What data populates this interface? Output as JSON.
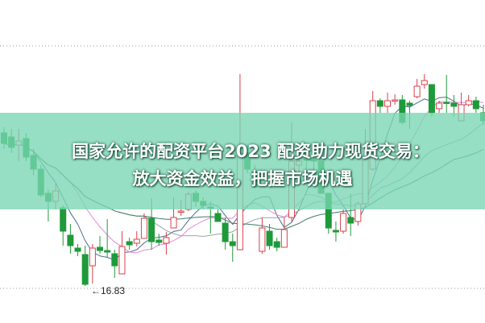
{
  "overlay": {
    "line1": "国家允许的配资平台2023 配资助力现货交易：",
    "line2": "放大资金效益，把握市场机遇"
  },
  "chart_data": {
    "type": "candlestick",
    "title": "",
    "xlabel": "",
    "ylabel": "",
    "ylim": [
      16.79,
      20.38
    ],
    "grid": "dotted horizontal lines at top and bottom",
    "colors": {
      "up": "#d9414b",
      "down": "#1e9a3a",
      "ma5": "#4a6f86",
      "ma10": "#e38ad6",
      "ma20": "#9aa5a8",
      "ma30": "#3f7a6a"
    },
    "annotation": {
      "text": "←16.83",
      "value": 16.83
    },
    "moving_averages": [
      "MA5",
      "MA10",
      "MA20",
      "MA30"
    ],
    "ohlc": [
      [
        18.73,
        18.8,
        18.53,
        18.6
      ],
      [
        18.68,
        18.78,
        18.48,
        18.55
      ],
      [
        18.58,
        18.78,
        18.38,
        18.63
      ],
      [
        18.66,
        18.73,
        18.38,
        18.43
      ],
      [
        18.45,
        18.53,
        18.2,
        18.28
      ],
      [
        18.28,
        18.33,
        17.93,
        17.96
      ],
      [
        17.98,
        18.03,
        17.63,
        17.88
      ],
      [
        17.88,
        18.1,
        17.78,
        18.01
      ],
      [
        17.8,
        17.83,
        17.33,
        17.51
      ],
      [
        17.46,
        17.6,
        17.23,
        17.33
      ],
      [
        17.3,
        17.35,
        17.2,
        17.26
      ],
      [
        17.22,
        17.33,
        16.83,
        16.85
      ],
      [
        17.08,
        17.35,
        16.86,
        17.3
      ],
      [
        17.31,
        17.45,
        17.23,
        17.27
      ],
      [
        17.27,
        17.66,
        17.18,
        17.25
      ],
      [
        17.23,
        17.28,
        16.93,
        17.08
      ],
      [
        16.98,
        17.51,
        16.98,
        17.32
      ],
      [
        17.38,
        17.43,
        17.28,
        17.34
      ],
      [
        17.36,
        17.51,
        17.32,
        17.41
      ],
      [
        17.42,
        17.73,
        17.42,
        17.67
      ],
      [
        17.67,
        17.92,
        17.28,
        17.38
      ],
      [
        17.4,
        17.48,
        17.33,
        17.37
      ],
      [
        17.36,
        17.5,
        17.22,
        17.43
      ],
      [
        17.55,
        17.93,
        17.55,
        17.68
      ],
      [
        17.75,
        17.9,
        17.7,
        17.76
      ],
      [
        17.78,
        18.0,
        17.76,
        17.97
      ],
      [
        17.98,
        18.02,
        17.81,
        17.88
      ],
      [
        17.88,
        17.93,
        17.78,
        17.83
      ],
      [
        17.81,
        17.88,
        17.48,
        17.8
      ],
      [
        17.73,
        17.78,
        17.63,
        17.63
      ],
      [
        17.61,
        17.68,
        17.28,
        17.38
      ],
      [
        17.38,
        17.48,
        17.13,
        17.33
      ],
      [
        17.28,
        19.46,
        17.28,
        18.46
      ],
      [
        18.48,
        18.58,
        18.23,
        18.28
      ],
      [
        18.25,
        18.33,
        18.05,
        18.06
      ],
      [
        17.26,
        17.68,
        17.23,
        17.55
      ],
      [
        17.51,
        17.6,
        17.28,
        17.33
      ],
      [
        17.38,
        17.43,
        17.26,
        17.31
      ],
      [
        17.31,
        17.68,
        17.31,
        17.53
      ],
      [
        17.68,
        18.86,
        17.63,
        18.38
      ],
      [
        18.33,
        18.53,
        18.23,
        18.38
      ],
      [
        18.41,
        18.48,
        18.28,
        18.39
      ],
      [
        18.41,
        18.48,
        18.23,
        18.38
      ],
      [
        18.38,
        18.48,
        17.98,
        17.98
      ],
      [
        17.98,
        17.98,
        17.48,
        17.55
      ],
      [
        17.52,
        17.63,
        17.38,
        17.5
      ],
      [
        17.51,
        17.78,
        17.48,
        17.73
      ],
      [
        17.68,
        17.98,
        17.45,
        17.61
      ],
      [
        17.63,
        17.88,
        17.58,
        17.85
      ],
      [
        17.85,
        18.78,
        17.85,
        18.41
      ],
      [
        18.28,
        19.25,
        18.26,
        19.13
      ],
      [
        19.13,
        19.16,
        18.98,
        19.06
      ],
      [
        19.06,
        19.23,
        18.98,
        19.13
      ],
      [
        19.13,
        19.21,
        19.08,
        19.14
      ],
      [
        19.14,
        19.2,
        18.83,
        18.86
      ],
      [
        19.1,
        19.13,
        18.78,
        19.07
      ],
      [
        19.18,
        19.4,
        19.16,
        19.31
      ],
      [
        19.33,
        19.46,
        19.28,
        19.38
      ],
      [
        19.33,
        19.33,
        18.93,
        18.98
      ],
      [
        19.03,
        19.13,
        18.98,
        19.1
      ],
      [
        19.11,
        19.45,
        18.98,
        19.1
      ],
      [
        19.1,
        19.2,
        18.93,
        19.06
      ],
      [
        18.88,
        19.23,
        18.88,
        19.08
      ],
      [
        19.08,
        19.2,
        19.06,
        19.13
      ],
      [
        19.13,
        19.18,
        18.98,
        19.03
      ],
      [
        18.98,
        19.08,
        18.83,
        18.88
      ]
    ]
  }
}
